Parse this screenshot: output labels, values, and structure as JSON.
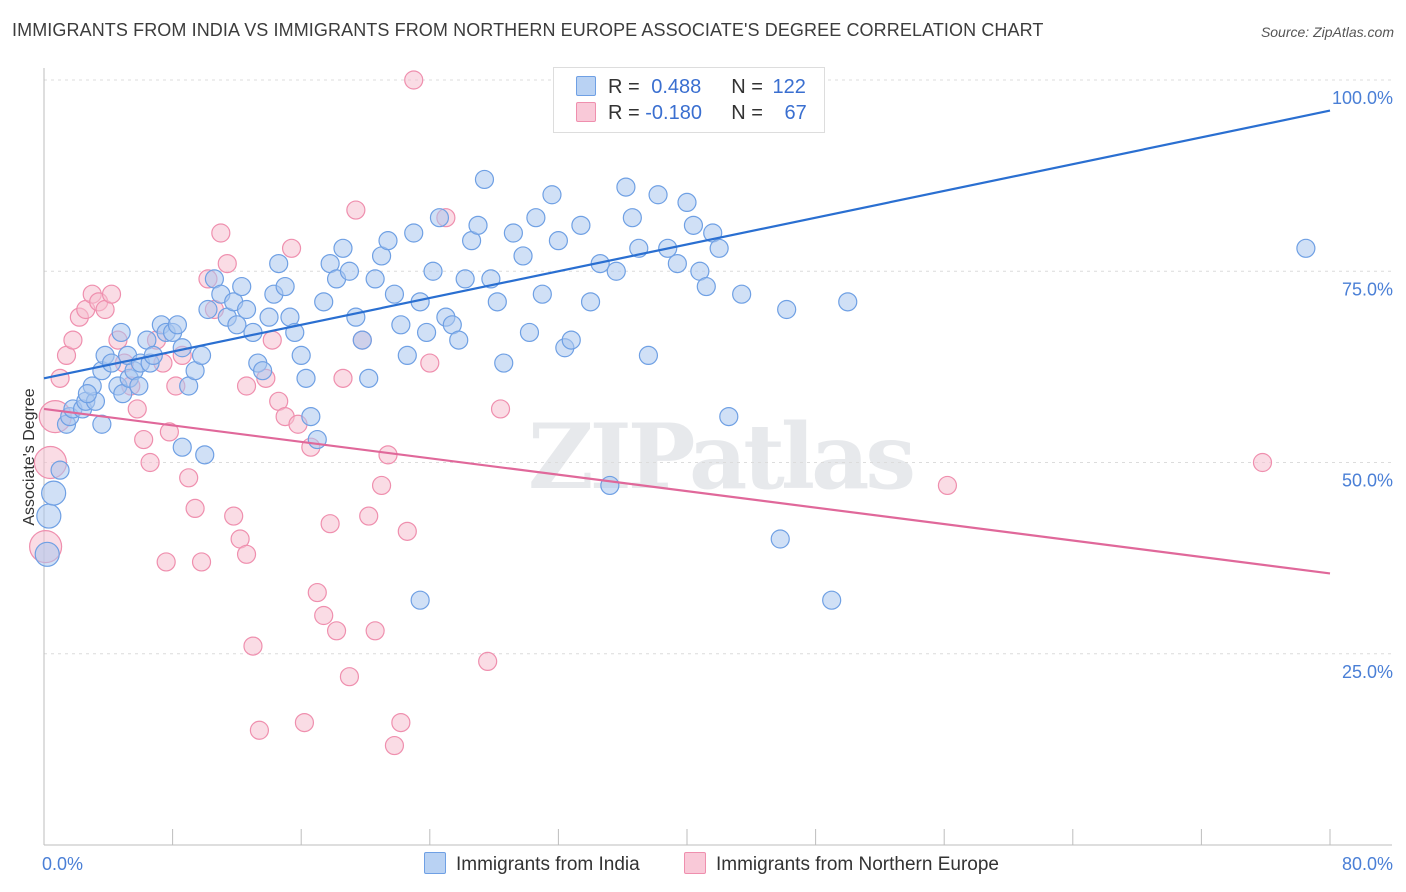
{
  "title": "IMMIGRANTS FROM INDIA VS IMMIGRANTS FROM NORTHERN EUROPE ASSOCIATE'S DEGREE CORRELATION CHART",
  "source": "Source: ZipAtlas.com",
  "watermark": "ZIPatlas",
  "legend": {
    "india": {
      "r_label": "R = ",
      "r": "0.488",
      "n_label": "N = ",
      "n": "122"
    },
    "europe": {
      "r_label": "R = ",
      "r": "-0.180",
      "n_label": "N = ",
      "n": "67"
    }
  },
  "bottom_legend": {
    "india": "Immigrants from India",
    "europe": "Immigrants from Northern Europe"
  },
  "colors": {
    "india": "#6fa0e4",
    "india_fill": "#a9c6ef",
    "india_line": "#2a6fd1",
    "europe": "#ef8fae",
    "europe_fill": "#f6bfd0",
    "europe_line": "#e0689a",
    "tick": "#4a7fd6"
  },
  "chart_data": {
    "type": "scatter",
    "title": "IMMIGRANTS FROM INDIA VS IMMIGRANTS FROM NORTHERN EUROPE ASSOCIATE'S DEGREE CORRELATION CHART",
    "xlabel": "",
    "ylabel": "Associate's Degree",
    "xlim": [
      0,
      80
    ],
    "ylim": [
      0,
      100
    ],
    "x_tick_labels": [
      "0.0%",
      "80.0%"
    ],
    "y_ticks": [
      25,
      50,
      75,
      100
    ],
    "y_tick_labels": [
      "25.0%",
      "50.0%",
      "75.0%",
      "100.0%"
    ],
    "grid": true,
    "legend_position": "top-center",
    "series": [
      {
        "name": "Immigrants from India",
        "trend": {
          "x": [
            0,
            80
          ],
          "y": [
            61,
            96
          ]
        },
        "points": [
          [
            0.2,
            38
          ],
          [
            0.3,
            43
          ],
          [
            0.6,
            46
          ],
          [
            1.0,
            49
          ],
          [
            1.4,
            55
          ],
          [
            1.6,
            56
          ],
          [
            1.8,
            57
          ],
          [
            2.4,
            57
          ],
          [
            2.6,
            58
          ],
          [
            3.2,
            58
          ],
          [
            3.0,
            60
          ],
          [
            2.7,
            59
          ],
          [
            3.6,
            62
          ],
          [
            3.8,
            64
          ],
          [
            4.2,
            63
          ],
          [
            4.6,
            60
          ],
          [
            4.9,
            59
          ],
          [
            5.3,
            61
          ],
          [
            5.6,
            62
          ],
          [
            5.9,
            60
          ],
          [
            4.8,
            67
          ],
          [
            5.2,
            64
          ],
          [
            6.0,
            63
          ],
          [
            6.4,
            66
          ],
          [
            6.6,
            63
          ],
          [
            6.8,
            64
          ],
          [
            7.3,
            68
          ],
          [
            7.6,
            67
          ],
          [
            8.0,
            67
          ],
          [
            8.3,
            68
          ],
          [
            8.6,
            65
          ],
          [
            9.0,
            60
          ],
          [
            9.4,
            62
          ],
          [
            9.8,
            64
          ],
          [
            10.2,
            70
          ],
          [
            10.6,
            74
          ],
          [
            11.0,
            72
          ],
          [
            11.4,
            69
          ],
          [
            11.8,
            71
          ],
          [
            12.0,
            68
          ],
          [
            12.3,
            73
          ],
          [
            12.6,
            70
          ],
          [
            13.0,
            67
          ],
          [
            13.3,
            63
          ],
          [
            13.6,
            62
          ],
          [
            14.0,
            69
          ],
          [
            14.3,
            72
          ],
          [
            14.6,
            76
          ],
          [
            15.0,
            73
          ],
          [
            15.3,
            69
          ],
          [
            15.6,
            67
          ],
          [
            16.0,
            64
          ],
          [
            16.3,
            61
          ],
          [
            16.6,
            56
          ],
          [
            17.0,
            53
          ],
          [
            17.4,
            71
          ],
          [
            17.8,
            76
          ],
          [
            18.2,
            74
          ],
          [
            18.6,
            78
          ],
          [
            19.0,
            75
          ],
          [
            19.4,
            69
          ],
          [
            19.8,
            66
          ],
          [
            20.2,
            61
          ],
          [
            20.6,
            74
          ],
          [
            21.0,
            77
          ],
          [
            21.4,
            79
          ],
          [
            21.8,
            72
          ],
          [
            22.2,
            68
          ],
          [
            22.6,
            64
          ],
          [
            23.0,
            80
          ],
          [
            23.4,
            71
          ],
          [
            23.8,
            67
          ],
          [
            24.2,
            75
          ],
          [
            24.6,
            82
          ],
          [
            25.0,
            69
          ],
          [
            25.4,
            68
          ],
          [
            25.8,
            66
          ],
          [
            26.2,
            74
          ],
          [
            26.6,
            79
          ],
          [
            27.0,
            81
          ],
          [
            27.4,
            87
          ],
          [
            27.8,
            74
          ],
          [
            28.2,
            71
          ],
          [
            28.6,
            63
          ],
          [
            29.2,
            80
          ],
          [
            29.8,
            77
          ],
          [
            30.2,
            67
          ],
          [
            30.6,
            82
          ],
          [
            31.0,
            72
          ],
          [
            31.6,
            85
          ],
          [
            32.0,
            79
          ],
          [
            32.4,
            65
          ],
          [
            32.8,
            66
          ],
          [
            33.4,
            81
          ],
          [
            34.0,
            71
          ],
          [
            34.6,
            76
          ],
          [
            35.2,
            47
          ],
          [
            35.6,
            75
          ],
          [
            36.2,
            86
          ],
          [
            36.6,
            82
          ],
          [
            37.0,
            78
          ],
          [
            37.6,
            64
          ],
          [
            38.2,
            85
          ],
          [
            38.8,
            78
          ],
          [
            39.4,
            76
          ],
          [
            40.0,
            84
          ],
          [
            40.4,
            81
          ],
          [
            40.8,
            75
          ],
          [
            41.2,
            73
          ],
          [
            41.6,
            80
          ],
          [
            42.0,
            78
          ],
          [
            42.6,
            56
          ],
          [
            43.4,
            72
          ],
          [
            45.8,
            40
          ],
          [
            46.2,
            70
          ],
          [
            49.0,
            32
          ],
          [
            50.0,
            71
          ],
          [
            78.5,
            78
          ],
          [
            23.4,
            32
          ],
          [
            3.6,
            55
          ],
          [
            8.6,
            52
          ],
          [
            10.0,
            51
          ]
        ]
      },
      {
        "name": "Immigrants from Northern Europe",
        "trend": {
          "x": [
            0,
            80
          ],
          "y": [
            57,
            35.5
          ]
        },
        "points": [
          [
            0.1,
            39
          ],
          [
            0.4,
            50
          ],
          [
            0.7,
            56
          ],
          [
            1.0,
            61
          ],
          [
            1.4,
            64
          ],
          [
            1.8,
            66
          ],
          [
            2.2,
            69
          ],
          [
            2.6,
            70
          ],
          [
            3.0,
            72
          ],
          [
            3.4,
            71
          ],
          [
            3.8,
            70
          ],
          [
            4.2,
            72
          ],
          [
            4.6,
            66
          ],
          [
            5.0,
            63
          ],
          [
            5.4,
            60
          ],
          [
            5.8,
            57
          ],
          [
            6.2,
            53
          ],
          [
            6.6,
            50
          ],
          [
            7.0,
            66
          ],
          [
            7.4,
            63
          ],
          [
            7.8,
            54
          ],
          [
            8.2,
            60
          ],
          [
            8.6,
            64
          ],
          [
            9.0,
            48
          ],
          [
            9.4,
            44
          ],
          [
            9.8,
            37
          ],
          [
            10.2,
            74
          ],
          [
            10.6,
            70
          ],
          [
            11.0,
            80
          ],
          [
            11.4,
            76
          ],
          [
            11.8,
            43
          ],
          [
            12.2,
            40
          ],
          [
            12.6,
            38
          ],
          [
            13.0,
            26
          ],
          [
            13.4,
            15
          ],
          [
            13.8,
            61
          ],
          [
            14.2,
            66
          ],
          [
            14.6,
            58
          ],
          [
            15.0,
            56
          ],
          [
            15.4,
            78
          ],
          [
            15.8,
            55
          ],
          [
            16.2,
            16
          ],
          [
            16.6,
            52
          ],
          [
            17.0,
            33
          ],
          [
            17.4,
            30
          ],
          [
            17.8,
            42
          ],
          [
            18.2,
            28
          ],
          [
            18.6,
            61
          ],
          [
            19.0,
            22
          ],
          [
            19.4,
            83
          ],
          [
            19.8,
            66
          ],
          [
            20.2,
            43
          ],
          [
            20.6,
            28
          ],
          [
            21.0,
            47
          ],
          [
            21.4,
            51
          ],
          [
            21.8,
            13
          ],
          [
            22.2,
            16
          ],
          [
            22.6,
            41
          ],
          [
            23.0,
            100
          ],
          [
            24.0,
            63
          ],
          [
            25.0,
            82
          ],
          [
            27.6,
            24
          ],
          [
            28.4,
            57
          ],
          [
            56.2,
            47
          ],
          [
            75.8,
            50
          ],
          [
            7.6,
            37
          ],
          [
            12.6,
            60
          ]
        ]
      }
    ]
  }
}
